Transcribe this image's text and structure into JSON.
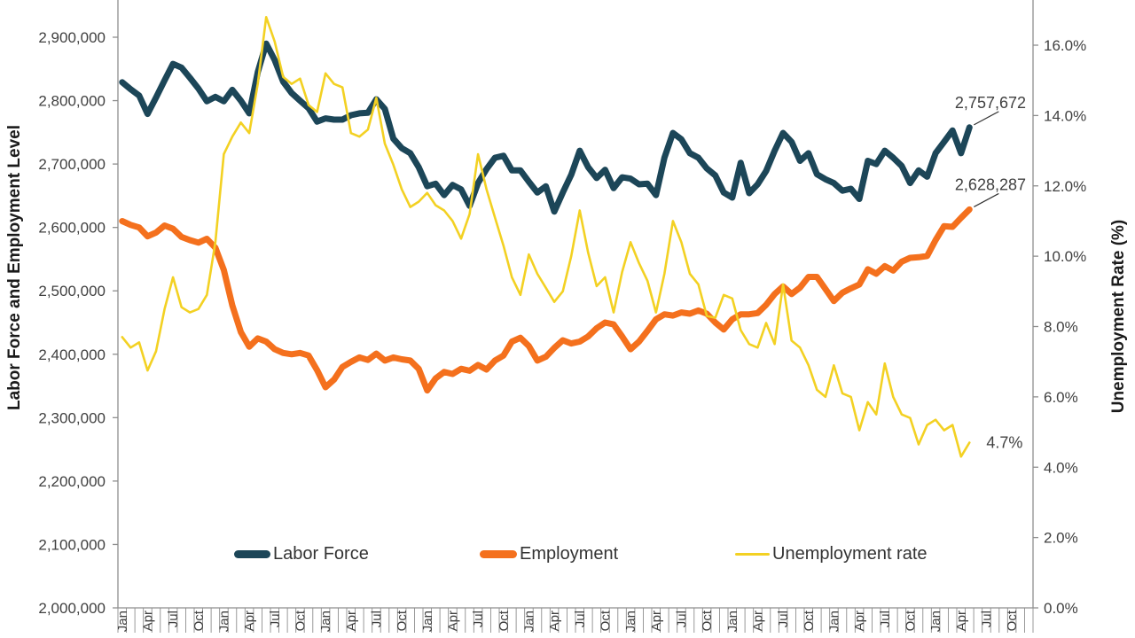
{
  "chart_data": {
    "type": "line",
    "title": "",
    "x_axis": {
      "label_cycle": [
        "Jan",
        "Apr",
        "Jul",
        "Oct"
      ],
      "label_every_n_months": 3,
      "first_tick_label": "Jan",
      "data_months": 101,
      "axis_months": 108,
      "grid": false
    },
    "left_axis": {
      "title": "Labor Force and Employment Level",
      "min": 2000000,
      "max": 2900000,
      "step": 100000
    },
    "right_axis": {
      "title": "Unemployment Rate (%)",
      "min": 0,
      "max": 16,
      "step": 2
    },
    "legend": {
      "position": "bottom-inside",
      "items": [
        {
          "label": "Labor Force",
          "color": "#1C4658",
          "thickness": 9,
          "swatch_width": 41
        },
        {
          "label": "Employment",
          "color": "#F4701D",
          "thickness": 9,
          "swatch_width": 42
        },
        {
          "label": "Unemployment rate",
          "color": "#F3D123",
          "thickness": 3,
          "swatch_width": 39
        }
      ]
    },
    "series": [
      {
        "name": "Labor Force",
        "axis": "left",
        "color": "#1C4658",
        "stroke_width": 7,
        "values": [
          2829000,
          2818000,
          2808000,
          2779000,
          2805000,
          2832000,
          2858000,
          2852000,
          2836000,
          2819000,
          2799000,
          2806000,
          2799000,
          2817000,
          2800000,
          2780000,
          2845000,
          2890000,
          2864000,
          2830000,
          2812000,
          2800000,
          2788000,
          2767000,
          2772000,
          2770000,
          2770000,
          2777000,
          2780000,
          2781000,
          2802000,
          2787000,
          2740000,
          2725000,
          2717000,
          2695000,
          2665000,
          2669000,
          2651000,
          2667000,
          2660000,
          2634000,
          2670000,
          2692000,
          2710000,
          2713000,
          2690000,
          2690000,
          2672000,
          2655000,
          2665000,
          2625000,
          2655000,
          2683000,
          2721000,
          2695000,
          2678000,
          2691000,
          2662000,
          2679000,
          2677000,
          2668000,
          2669000,
          2651000,
          2710000,
          2749000,
          2739000,
          2717000,
          2710000,
          2693000,
          2682000,
          2655000,
          2647000,
          2702000,
          2654000,
          2668000,
          2689000,
          2721000,
          2749000,
          2735000,
          2705000,
          2717000,
          2684000,
          2676000,
          2670000,
          2658000,
          2661000,
          2645000,
          2705000,
          2700000,
          2721000,
          2710000,
          2697000,
          2670000,
          2690000,
          2680000,
          2717000,
          2735000,
          2753000,
          2717000,
          2757672
        ]
      },
      {
        "name": "Employment",
        "axis": "left",
        "color": "#F4701D",
        "stroke_width": 7,
        "values": [
          2610000,
          2604000,
          2600000,
          2586000,
          2592000,
          2603000,
          2598000,
          2585000,
          2580000,
          2576000,
          2582000,
          2568000,
          2533000,
          2477000,
          2435000,
          2412000,
          2425000,
          2420000,
          2408000,
          2402000,
          2400000,
          2402000,
          2398000,
          2375000,
          2348000,
          2360000,
          2380000,
          2388000,
          2395000,
          2391000,
          2401000,
          2390000,
          2395000,
          2392000,
          2390000,
          2377000,
          2343000,
          2362000,
          2372000,
          2369000,
          2377000,
          2374000,
          2383000,
          2376000,
          2390000,
          2398000,
          2420000,
          2426000,
          2413000,
          2390000,
          2396000,
          2410000,
          2422000,
          2417000,
          2420000,
          2428000,
          2441000,
          2450000,
          2447000,
          2428000,
          2408000,
          2420000,
          2437000,
          2455000,
          2463000,
          2461000,
          2466000,
          2464000,
          2469000,
          2464000,
          2450000,
          2439000,
          2455000,
          2463000,
          2463000,
          2465000,
          2478000,
          2495000,
          2507000,
          2495000,
          2505000,
          2522000,
          2522000,
          2503000,
          2484000,
          2497000,
          2504000,
          2510000,
          2534000,
          2527000,
          2539000,
          2532000,
          2546000,
          2552000,
          2553000,
          2555000,
          2580000,
          2602000,
          2601000,
          2615000,
          2628287
        ]
      },
      {
        "name": "Unemployment rate",
        "axis": "right",
        "color": "#F3D123",
        "stroke_width": 2.6,
        "values": [
          7.7,
          7.4,
          7.55,
          6.75,
          7.3,
          8.5,
          9.4,
          8.55,
          8.4,
          8.5,
          8.9,
          10.4,
          12.9,
          13.4,
          13.8,
          13.5,
          14.9,
          16.8,
          16.1,
          15.1,
          14.9,
          15.05,
          14.3,
          14.1,
          15.2,
          14.9,
          14.8,
          13.5,
          13.4,
          13.6,
          14.5,
          13.2,
          12.6,
          11.9,
          11.4,
          11.55,
          11.8,
          11.45,
          11.3,
          11.0,
          10.5,
          11.2,
          12.9,
          11.9,
          11.1,
          10.3,
          9.4,
          8.9,
          10.05,
          9.5,
          9.1,
          8.7,
          9.0,
          10.0,
          11.3,
          10.1,
          9.15,
          9.4,
          8.4,
          9.55,
          10.4,
          9.8,
          9.3,
          8.4,
          9.5,
          11.0,
          10.4,
          9.5,
          9.2,
          8.3,
          8.25,
          8.9,
          8.8,
          7.9,
          7.5,
          7.4,
          8.1,
          7.5,
          9.2,
          7.6,
          7.4,
          6.9,
          6.2,
          6.0,
          6.9,
          6.1,
          6.0,
          5.05,
          5.85,
          5.5,
          6.95,
          6.0,
          5.5,
          5.4,
          4.65,
          5.2,
          5.35,
          5.05,
          5.2,
          4.3,
          4.7
        ]
      }
    ],
    "annotations": [
      {
        "target": "Labor Force",
        "text": "2,757,672",
        "placement": "above-end",
        "leader_line": true
      },
      {
        "target": "Employment",
        "text": "2,628,287",
        "placement": "above-end",
        "leader_line": true
      },
      {
        "target": "Unemployment rate",
        "text": "4.7%",
        "placement": "right-of-end",
        "leader_line": false
      }
    ],
    "style": {
      "axis_line_color": "#8E8E8E",
      "tick_label_color": "#404040",
      "annotation_color": "#404040",
      "background": "#FFFFFF"
    }
  }
}
